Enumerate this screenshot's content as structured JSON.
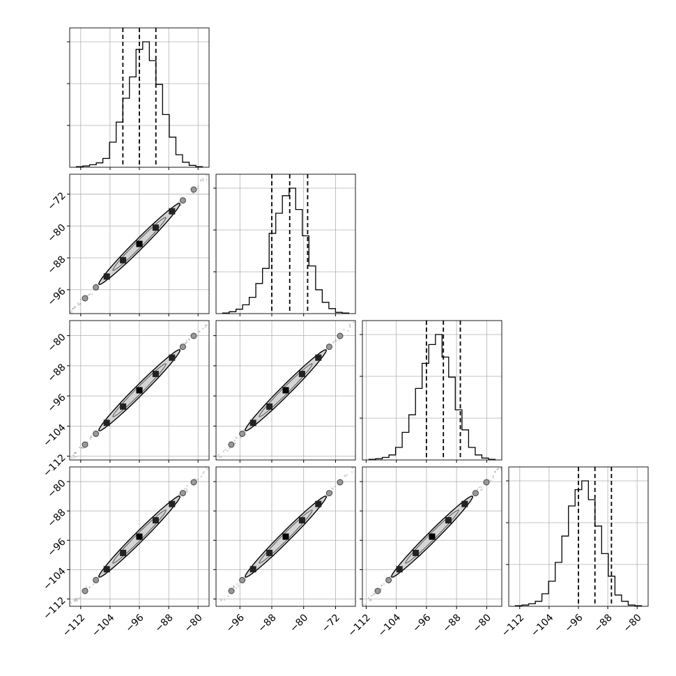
{
  "chart_data": {
    "type": "corner",
    "n_params": 4,
    "grid": true,
    "quantile_lines": "dashed",
    "hist_quantiles": [
      [
        -100.5,
        -96.0,
        -91.5
      ],
      [
        -88.0,
        -83.5,
        -79.0
      ],
      [
        -96.0,
        -91.5,
        -87.0
      ],
      [
        -96.0,
        -91.5,
        -87.0
      ]
    ],
    "param_ranges": [
      [
        -115,
        -77
      ],
      [
        -102,
        -67
      ],
      [
        -113,
        -76
      ],
      [
        -114,
        -76
      ]
    ],
    "hist_ranges": [
      [
        -115,
        -77
      ],
      [
        -102,
        -67
      ],
      [
        -113,
        -76
      ],
      [
        -115,
        -77
      ]
    ],
    "histograms": [
      [
        0.005,
        0.01,
        0.02,
        0.035,
        0.07,
        0.2,
        0.36,
        0.55,
        0.72,
        0.94,
        1.0,
        0.85,
        0.66,
        0.42,
        0.24,
        0.1,
        0.04,
        0.015,
        0.005
      ],
      [
        0.005,
        0.015,
        0.035,
        0.07,
        0.13,
        0.24,
        0.36,
        0.64,
        0.8,
        0.94,
        1.0,
        0.83,
        0.62,
        0.38,
        0.19,
        0.09,
        0.04,
        0.01,
        0.005
      ],
      [
        0.005,
        0.01,
        0.02,
        0.04,
        0.1,
        0.22,
        0.36,
        0.57,
        0.77,
        0.92,
        1.0,
        0.82,
        0.66,
        0.4,
        0.24,
        0.1,
        0.04,
        0.015,
        0.005
      ],
      [
        0.005,
        0.01,
        0.02,
        0.04,
        0.1,
        0.2,
        0.35,
        0.56,
        0.8,
        0.93,
        1.0,
        0.85,
        0.64,
        0.42,
        0.24,
        0.09,
        0.04,
        0.01,
        0.005
      ]
    ],
    "x_tick_values": [
      [
        -112,
        -104,
        -96,
        -88,
        -80
      ],
      [
        -96,
        -88,
        -80,
        -72
      ],
      [
        -112,
        -104,
        -96,
        -88,
        -80
      ],
      [
        -112,
        -104,
        -96,
        -88,
        -80
      ]
    ],
    "y_tick_values": [
      null,
      [
        -72,
        -80,
        -88,
        -96
      ],
      [
        -80,
        -88,
        -96,
        -104,
        -112
      ],
      [
        -80,
        -88,
        -96,
        -104,
        -112
      ]
    ],
    "x_tick_labels": [
      [
        "−112",
        "−104",
        "−96",
        "−88",
        "−80"
      ],
      [
        "−96",
        "−88",
        "−80",
        "−72"
      ],
      [
        "−112",
        "−104",
        "−96",
        "−88",
        "−80"
      ],
      [
        "−112",
        "−104",
        "−96",
        "−88",
        "−80"
      ]
    ],
    "y_tick_labels": [
      [],
      [
        "−72",
        "−80",
        "−88",
        "−96"
      ],
      [
        "−80",
        "−88",
        "−96",
        "−104",
        "−112"
      ],
      [
        "−80",
        "−88",
        "−96",
        "−104",
        "−112"
      ]
    ],
    "hist_grid_fractions": [
      0.3,
      0.6,
      0.9
    ],
    "colors": {
      "line": "#000000",
      "grid": "#b0b0b0",
      "contour_fill": "#d4d4d4",
      "points": "#888888"
    }
  }
}
